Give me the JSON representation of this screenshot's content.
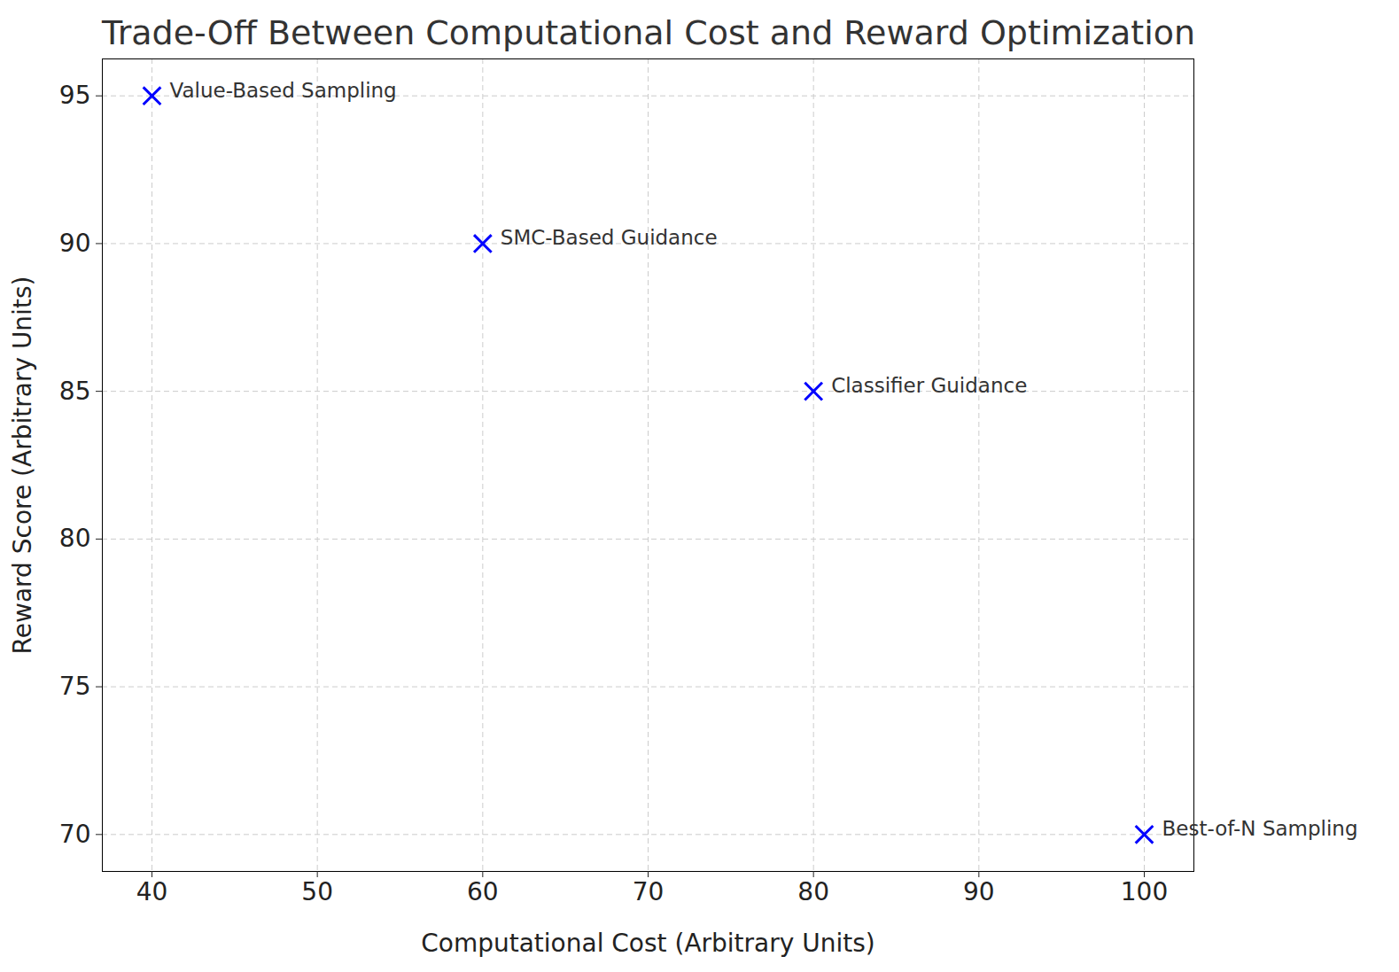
{
  "chart_data": {
    "type": "scatter",
    "title": "Trade-Off Between Computational Cost and Reward Optimization",
    "x_label": "Computational Cost (Arbitrary Units)",
    "y_label": "Reward Score (Arbitrary Units)",
    "x": [
      40,
      60,
      80,
      100
    ],
    "values": [
      95,
      90,
      85,
      70
    ],
    "labels": [
      "Value-Based Sampling",
      "SMC-Based Guidance",
      "Classifier Guidance",
      "Best-of-N Sampling"
    ],
    "color": "#0000ff",
    "marker": "x",
    "xlim": [
      37,
      103
    ],
    "ylim": [
      68.75,
      96.25
    ],
    "xticks": [
      40,
      50,
      60,
      70,
      80,
      90,
      100
    ],
    "yticks": [
      70,
      75,
      80,
      85,
      90,
      95
    ],
    "grid": true
  }
}
